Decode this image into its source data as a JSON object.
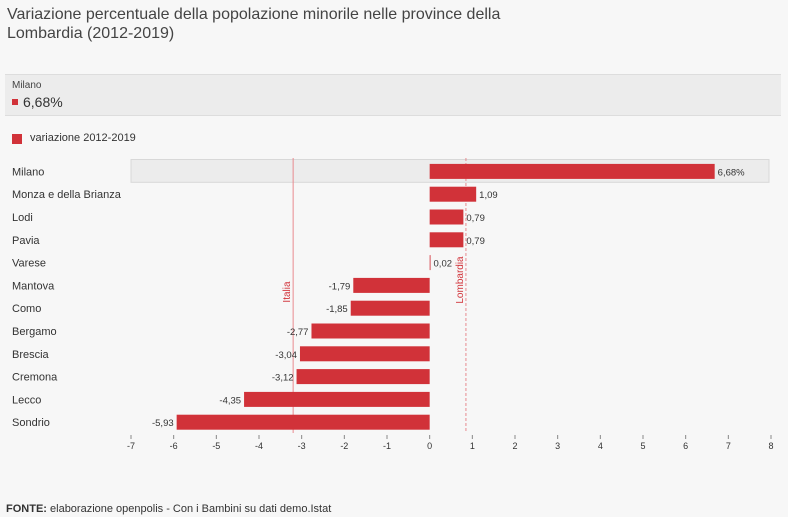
{
  "title": "Variazione percentuale della popolazione minorile nelle province della Lombardia (2012-2019)",
  "tooltip": {
    "label": "Milano",
    "value": "6,68%"
  },
  "colors": {
    "bar": "#d13239",
    "highlight_bg": "#ececec",
    "reference_line": "#e88a8f"
  },
  "footer": {
    "prefix": "FONTE:",
    "text": " elaborazione openpolis - Con i Bambini su dati demo.Istat"
  },
  "chart_data": {
    "type": "bar",
    "orientation": "horizontal",
    "legend": [
      "variazione 2012-2019"
    ],
    "categories": [
      "Milano",
      "Monza e della Brianza",
      "Lodi",
      "Pavia",
      "Varese",
      "Mantova",
      "Como",
      "Bergamo",
      "Brescia",
      "Cremona",
      "Lecco",
      "Sondrio"
    ],
    "values": [
      6.68,
      1.09,
      0.79,
      0.79,
      0.02,
      -1.79,
      -1.85,
      -2.77,
      -3.04,
      -3.12,
      -4.35,
      -5.93
    ],
    "value_labels": [
      "6,68%",
      "1,09",
      "0,79",
      "0,79",
      "0,02",
      "-1,79",
      "-1,85",
      "-2,77",
      "-3,04",
      "-3,12",
      "-4,35",
      "-5,93"
    ],
    "highlighted_category": "Milano",
    "xlim": [
      -7,
      8
    ],
    "xticks": [
      -7,
      -6,
      -5,
      -4,
      -3,
      -2,
      -1,
      0,
      1,
      2,
      3,
      4,
      5,
      6,
      7,
      8
    ],
    "reference_lines": [
      {
        "name": "Italia",
        "value": -3.2
      },
      {
        "name": "Lombardia",
        "value": 0.85
      }
    ]
  }
}
